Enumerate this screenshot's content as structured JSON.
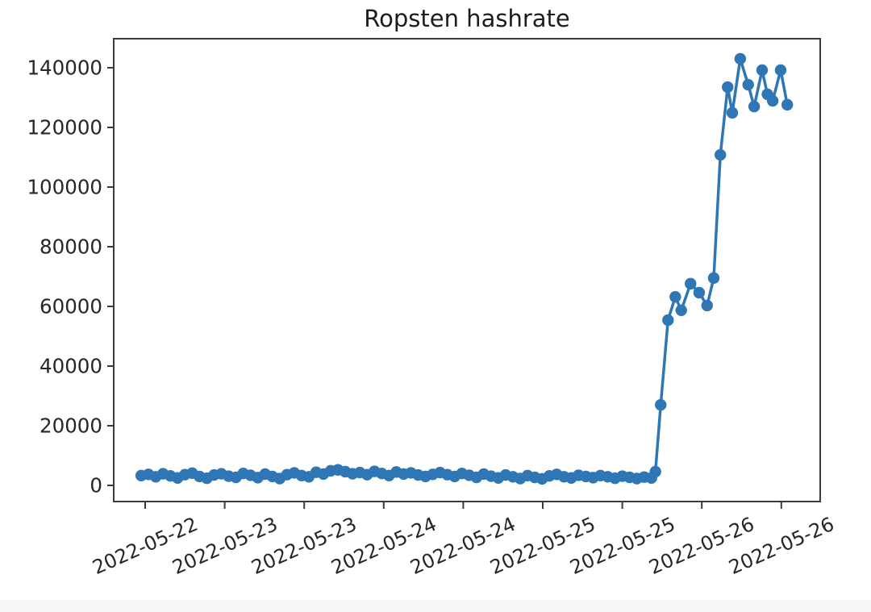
{
  "chart": {
    "title": "Ropsten hashrate"
  },
  "chart_data": {
    "type": "line",
    "title": "Ropsten hashrate",
    "xlabel": "",
    "ylabel": "",
    "grid": false,
    "legend": null,
    "line_color": "#2f76b5",
    "marker": "o",
    "x_unit": "hours (0 = first x tick, ticks every 12h)",
    "x_tick_hours": [
      0,
      12,
      24,
      36,
      48,
      60,
      72,
      84,
      96
    ],
    "x_tick_labels": [
      "2022-05-22",
      "2022-05-23",
      "2022-05-23",
      "2022-05-24",
      "2022-05-24",
      "2022-05-25",
      "2022-05-25",
      "2022-05-26",
      "2022-05-26"
    ],
    "y_ticks": [
      0,
      20000,
      40000,
      60000,
      80000,
      100000,
      120000,
      140000
    ],
    "y_tick_labels": [
      "0",
      "20000",
      "40000",
      "60000",
      "80000",
      "100000",
      "120000",
      "140000"
    ],
    "xlim": [
      -4.7,
      101.9
    ],
    "ylim": [
      -5400,
      149700
    ],
    "series": [
      {
        "name": "hashrate",
        "points": [
          [
            -0.6,
            3300
          ],
          [
            0.5,
            3700
          ],
          [
            1.6,
            2900
          ],
          [
            2.7,
            3900
          ],
          [
            3.8,
            3200
          ],
          [
            4.9,
            2500
          ],
          [
            6.0,
            3600
          ],
          [
            7.1,
            4100
          ],
          [
            8.2,
            3000
          ],
          [
            9.3,
            2400
          ],
          [
            10.4,
            3500
          ],
          [
            11.5,
            3900
          ],
          [
            12.6,
            3100
          ],
          [
            13.7,
            2700
          ],
          [
            14.8,
            4000
          ],
          [
            15.9,
            3400
          ],
          [
            17.0,
            2600
          ],
          [
            18.1,
            3800
          ],
          [
            19.2,
            3000
          ],
          [
            20.3,
            2300
          ],
          [
            21.4,
            3600
          ],
          [
            22.5,
            4200
          ],
          [
            23.6,
            3300
          ],
          [
            24.7,
            2900
          ],
          [
            25.8,
            4400
          ],
          [
            26.9,
            3800
          ],
          [
            28.0,
            4900
          ],
          [
            29.1,
            5200
          ],
          [
            30.2,
            4600
          ],
          [
            31.3,
            3900
          ],
          [
            32.4,
            4300
          ],
          [
            33.5,
            3600
          ],
          [
            34.6,
            4700
          ],
          [
            35.7,
            4000
          ],
          [
            36.8,
            3300
          ],
          [
            37.9,
            4500
          ],
          [
            39.0,
            3800
          ],
          [
            40.1,
            4200
          ],
          [
            41.2,
            3500
          ],
          [
            42.3,
            3000
          ],
          [
            43.4,
            3700
          ],
          [
            44.5,
            4300
          ],
          [
            45.6,
            3600
          ],
          [
            46.7,
            3000
          ],
          [
            47.8,
            4000
          ],
          [
            48.9,
            3400
          ],
          [
            50.0,
            2700
          ],
          [
            51.1,
            3800
          ],
          [
            52.2,
            3100
          ],
          [
            53.3,
            2500
          ],
          [
            54.4,
            3500
          ],
          [
            55.5,
            2900
          ],
          [
            56.6,
            2300
          ],
          [
            57.7,
            3300
          ],
          [
            58.8,
            2700
          ],
          [
            59.9,
            2200
          ],
          [
            61.0,
            3200
          ],
          [
            62.1,
            3700
          ],
          [
            63.2,
            2900
          ],
          [
            64.3,
            2500
          ],
          [
            65.4,
            3400
          ],
          [
            66.5,
            3000
          ],
          [
            67.6,
            2600
          ],
          [
            68.7,
            3300
          ],
          [
            69.8,
            2900
          ],
          [
            70.9,
            2400
          ],
          [
            72.0,
            3100
          ],
          [
            73.1,
            2700
          ],
          [
            74.2,
            2300
          ],
          [
            75.3,
            2800
          ],
          [
            76.4,
            2500
          ],
          [
            77.0,
            4600
          ],
          [
            77.8,
            27000
          ],
          [
            78.9,
            55400
          ],
          [
            80.0,
            63200
          ],
          [
            80.9,
            58700
          ],
          [
            82.3,
            67600
          ],
          [
            83.6,
            64600
          ],
          [
            84.8,
            60300
          ],
          [
            85.8,
            69500
          ],
          [
            86.8,
            110800
          ],
          [
            87.9,
            133500
          ],
          [
            88.6,
            124900
          ],
          [
            89.8,
            143000
          ],
          [
            91.0,
            134300
          ],
          [
            91.9,
            127000
          ],
          [
            93.1,
            139200
          ],
          [
            93.9,
            131100
          ],
          [
            94.7,
            128900
          ],
          [
            95.9,
            139200
          ],
          [
            96.9,
            127600
          ]
        ]
      }
    ]
  },
  "colors": {
    "line": "#2f76b5",
    "spine": "#3a3a3a",
    "tick_text": "#262626",
    "title_text": "#1c1c1c",
    "background": "#ffffff",
    "bottom_strip": "#f5f6f8"
  }
}
